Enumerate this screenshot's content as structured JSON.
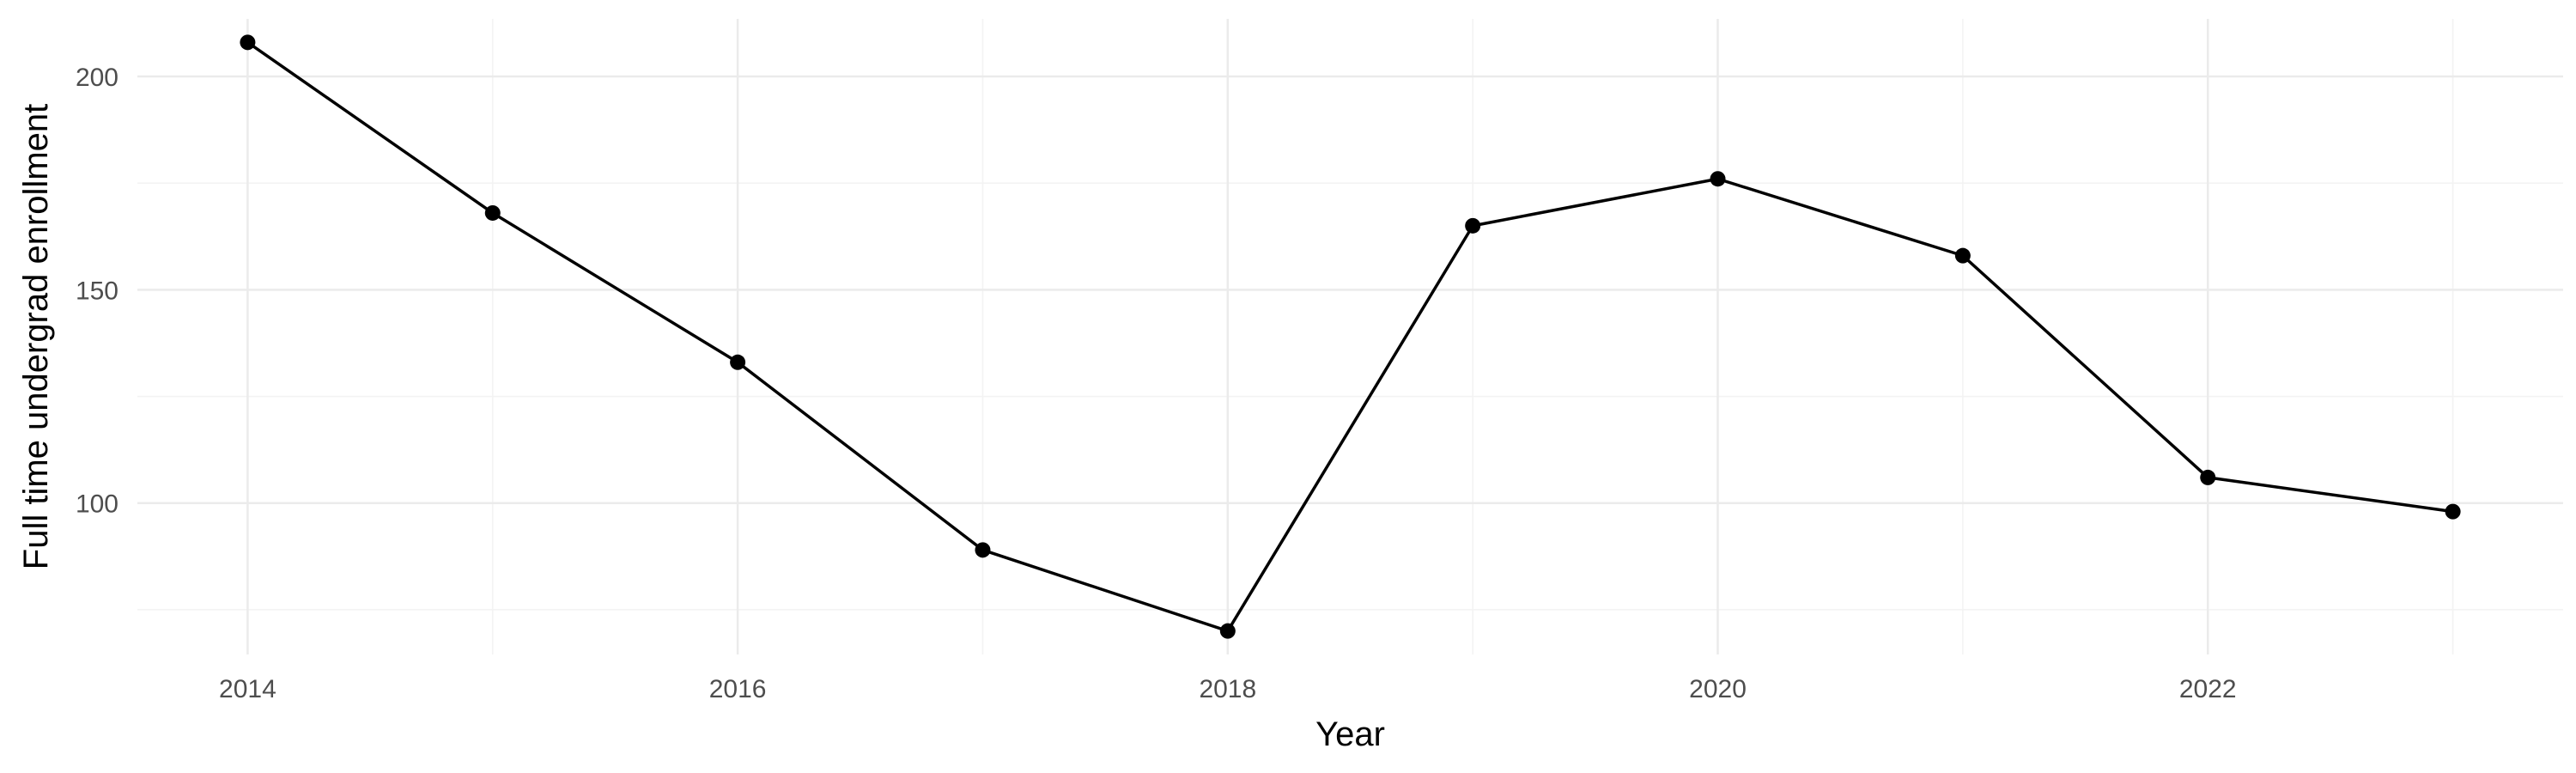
{
  "chart_data": {
    "type": "line",
    "title": "",
    "xlabel": "Year",
    "ylabel": "Full time undergrad enrollment",
    "x": [
      2014,
      2015,
      2016,
      2017,
      2018,
      2019,
      2020,
      2021,
      2022,
      2023
    ],
    "series": [
      {
        "values": [
          208,
          168,
          133,
          89,
          70,
          165,
          176,
          158,
          106,
          98
        ]
      }
    ],
    "xlim": [
      2013.55,
      2023.45
    ],
    "ylim": [
      64.5,
      213.5
    ],
    "x_major_ticks": [
      2014,
      2016,
      2018,
      2020,
      2022
    ],
    "x_minor_ticks": [
      2015,
      2017,
      2019,
      2021,
      2023
    ],
    "y_major_ticks": [
      100,
      150,
      200
    ],
    "y_minor_ticks": [
      75,
      125,
      175
    ],
    "x_tick_labels": [
      "2014",
      "2016",
      "2018",
      "2020",
      "2022"
    ],
    "y_tick_labels": [
      "100",
      "150",
      "200"
    ],
    "grid": true,
    "legend": "none",
    "colors": {
      "line": "#000000",
      "point": "#000000",
      "background": "#ffffff"
    }
  }
}
